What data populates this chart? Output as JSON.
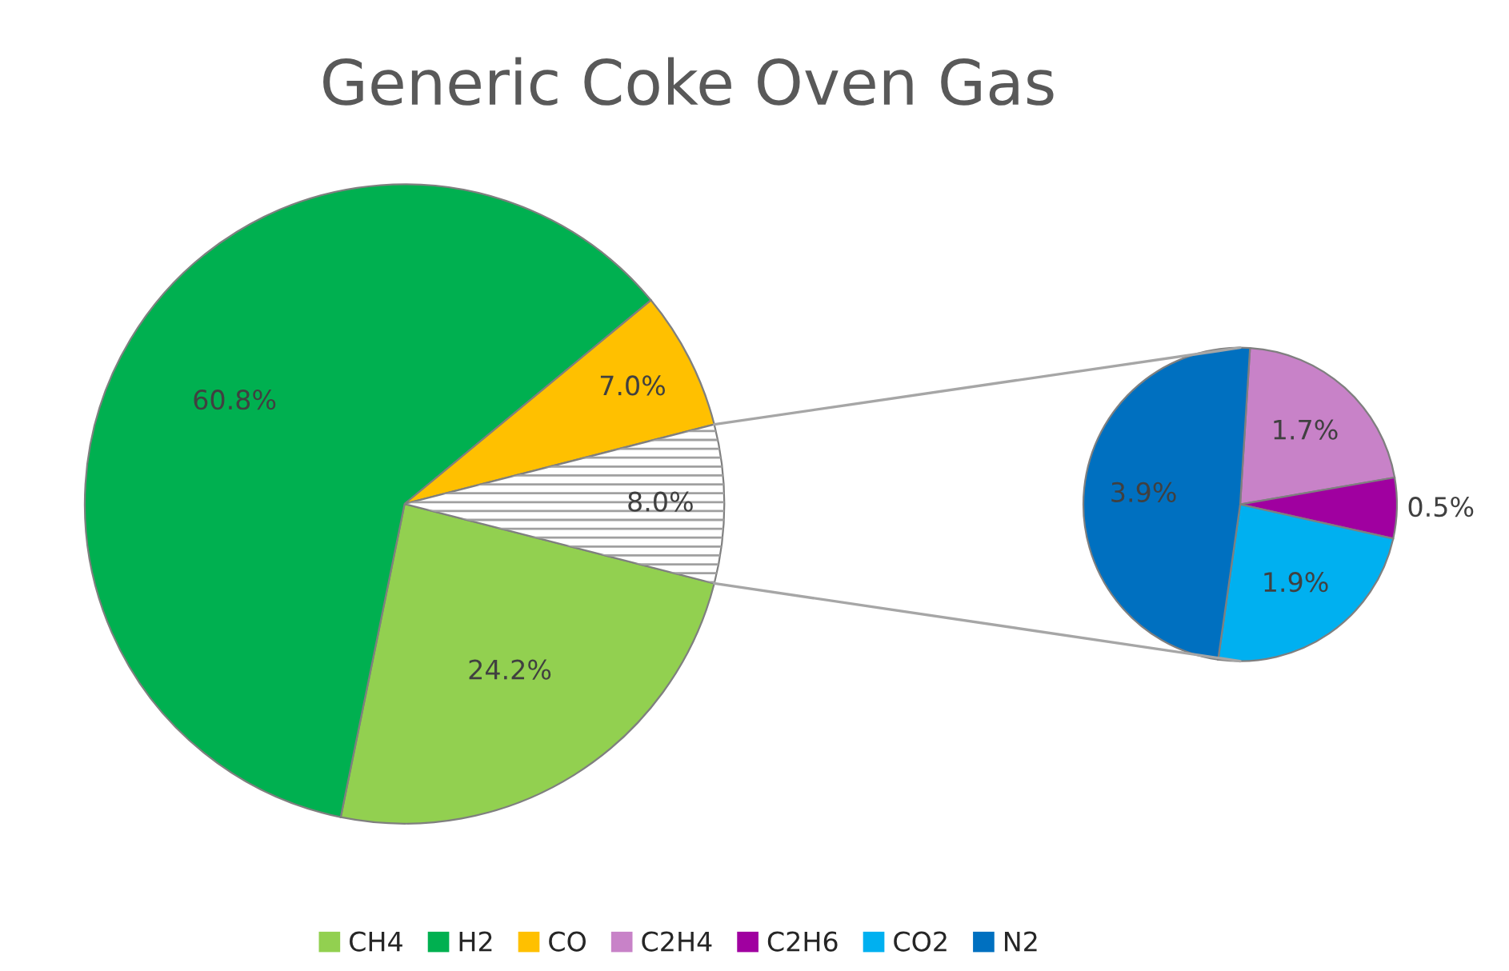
{
  "chart_data": [
    {
      "type": "pie",
      "title": "Generic Coke Oven Gas",
      "categories": [
        "CH4",
        "H2",
        "CO",
        null
      ],
      "values": [
        24.2,
        60.8,
        7.0,
        8.0
      ],
      "colors": [
        "#92d050",
        "#00b050",
        "#ffc000",
        "#ffffff"
      ],
      "value_labels": [
        "24.2%",
        "60.8%",
        "7.0%",
        "8.0%"
      ],
      "legend": "bottom"
    },
    {
      "type": "pie",
      "categories": [
        "C2H4",
        "C2H6",
        "CO2",
        "N2"
      ],
      "values": [
        1.7,
        0.5,
        1.9,
        3.9
      ],
      "colors": [
        "#c882c8",
        "#a000a0",
        "#00b0f0",
        "#0070c0"
      ],
      "value_labels": [
        "1.7%",
        "0.5%",
        "1.9%",
        "3.9%"
      ],
      "legend": "bottom"
    }
  ]
}
